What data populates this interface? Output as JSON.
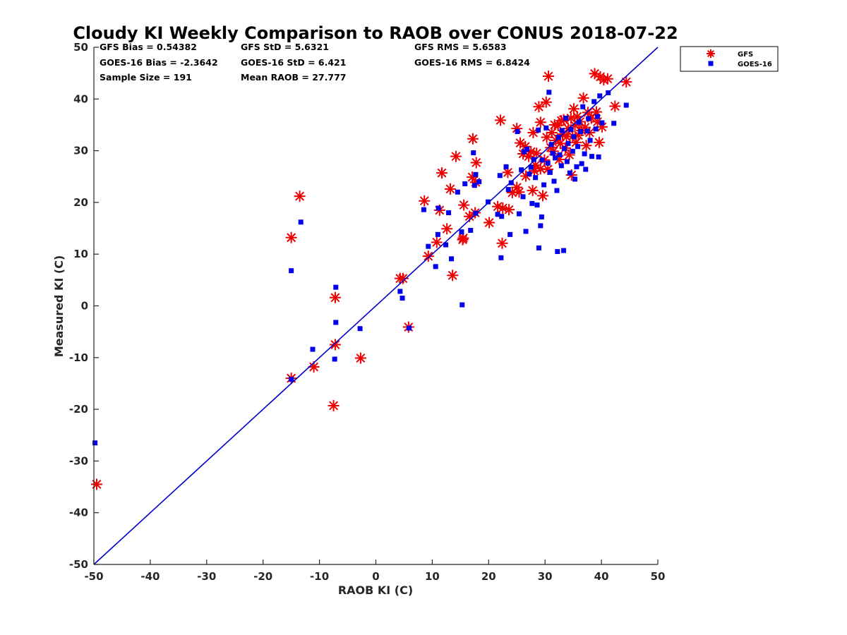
{
  "chart_data": {
    "type": "scatter",
    "title": "Cloudy KI Weekly Comparison to RAOB over CONUS 2018-07-22",
    "xlabel": "RAOB KI (C)",
    "ylabel": "Measured KI (C)",
    "xlim": [
      -50,
      50
    ],
    "ylim": [
      -50,
      50
    ],
    "xticks": [
      -50,
      -40,
      -30,
      -20,
      -10,
      0,
      10,
      20,
      30,
      40,
      50
    ],
    "yticks": [
      -50,
      -40,
      -30,
      -20,
      -10,
      0,
      10,
      20,
      30,
      40,
      50
    ],
    "grid": false,
    "legend_position": "top-right-outside",
    "reference_line": {
      "from": [
        -50,
        -50
      ],
      "to": [
        50,
        50
      ],
      "color": "#0000cc"
    },
    "stats": [
      [
        "GFS Bias = 0.54382",
        "GFS StD = 5.6321",
        "GFS RMS = 5.6583"
      ],
      [
        "GOES-16 Bias = -2.3642",
        "GOES-16 StD = 6.421",
        "GOES-16 RMS = 6.8424"
      ],
      [
        "Sample Size = 191",
        "Mean RAOB = 27.777",
        ""
      ]
    ],
    "series": [
      {
        "name": "GFS",
        "marker": "asterisk",
        "color": "#ee0000",
        "points": [
          [
            -49.5,
            -34.5
          ],
          [
            -15,
            13.2
          ],
          [
            -13.5,
            21.2
          ],
          [
            -15,
            -14
          ],
          [
            -11,
            -11.8
          ],
          [
            -7.5,
            -19.3
          ],
          [
            -7.2,
            1.6
          ],
          [
            -7.2,
            -7.5
          ],
          [
            -2.7,
            -10.1
          ],
          [
            4.3,
            5.3
          ],
          [
            4.8,
            5.3
          ],
          [
            5.8,
            -4.1
          ],
          [
            8.6,
            20.3
          ],
          [
            9.3,
            9.6
          ],
          [
            10.8,
            12.3
          ],
          [
            11.3,
            18.5
          ],
          [
            11.7,
            25.7
          ],
          [
            12.6,
            14.9
          ],
          [
            13.2,
            22.6
          ],
          [
            13.6,
            5.9
          ],
          [
            14.2,
            28.9
          ],
          [
            15.4,
            12.8
          ],
          [
            15.5,
            13.1
          ],
          [
            15.6,
            19.5
          ],
          [
            16.6,
            17.3
          ],
          [
            17.1,
            24.9
          ],
          [
            17.2,
            32.3
          ],
          [
            17.6,
            18
          ],
          [
            17.8,
            27.7
          ],
          [
            17.7,
            23.9
          ],
          [
            20.1,
            16.1
          ],
          [
            21.6,
            19.2
          ],
          [
            22.1,
            35.9
          ],
          [
            22.4,
            12.1
          ],
          [
            22.5,
            18.9
          ],
          [
            23.4,
            25.8
          ],
          [
            23.6,
            18.6
          ],
          [
            24.2,
            21.9
          ],
          [
            25,
            22.9
          ],
          [
            25,
            34.3
          ],
          [
            25.4,
            22
          ],
          [
            25.6,
            31.5
          ],
          [
            26.1,
            29.4
          ],
          [
            26.5,
            30.8
          ],
          [
            26.6,
            25.1
          ],
          [
            27.1,
            28.9
          ],
          [
            27.5,
            29.8
          ],
          [
            27.8,
            22.3
          ],
          [
            27.9,
            33.5
          ],
          [
            28.1,
            26.1
          ],
          [
            28.3,
            27.2
          ],
          [
            28.5,
            29.5
          ],
          [
            28.9,
            38.5
          ],
          [
            29.2,
            35.5
          ],
          [
            29.2,
            26.5
          ],
          [
            29.6,
            21.3
          ],
          [
            29.9,
            28.2
          ],
          [
            30.2,
            39.4
          ],
          [
            30.3,
            32.6
          ],
          [
            30.6,
            44.4
          ],
          [
            30.5,
            26.4
          ],
          [
            31,
            30.6
          ],
          [
            31.2,
            33.5
          ],
          [
            31.5,
            29.9
          ],
          [
            31.7,
            35
          ],
          [
            31.9,
            32
          ],
          [
            32.3,
            34.9
          ],
          [
            32.5,
            28.3
          ],
          [
            32.7,
            31.4
          ],
          [
            32.9,
            35.8
          ],
          [
            33.1,
            33.2
          ],
          [
            33.3,
            36
          ],
          [
            33.6,
            30.5
          ],
          [
            33.8,
            32.7
          ],
          [
            34.1,
            34.3
          ],
          [
            34.3,
            29.2
          ],
          [
            34.6,
            36.3
          ],
          [
            34.7,
            25.3
          ],
          [
            34.9,
            32.8
          ],
          [
            35.1,
            38.1
          ],
          [
            35.3,
            34.9
          ],
          [
            35.5,
            31.6
          ],
          [
            35.7,
            36.6
          ],
          [
            35.9,
            33
          ],
          [
            36.2,
            35.6
          ],
          [
            36.5,
            33.9
          ],
          [
            36.8,
            40.2
          ],
          [
            37.1,
            34.5
          ],
          [
            37.3,
            31
          ],
          [
            37.6,
            37.4
          ],
          [
            37.9,
            33.5
          ],
          [
            38.2,
            36.3
          ],
          [
            38.8,
            44.9
          ],
          [
            39.1,
            37.5
          ],
          [
            39.3,
            35.6
          ],
          [
            39.6,
            31.6
          ],
          [
            39.8,
            44.3
          ],
          [
            40.1,
            34.6
          ],
          [
            40.4,
            43.7
          ],
          [
            41.1,
            43.9
          ],
          [
            42.4,
            38.6
          ],
          [
            44.4,
            43.3
          ]
        ]
      },
      {
        "name": "GOES-16",
        "marker": "square",
        "color": "#0000ee",
        "points": [
          [
            -49.8,
            -26.5
          ],
          [
            -15,
            6.8
          ],
          [
            -13.3,
            16.2
          ],
          [
            -15,
            -14.2
          ],
          [
            -11.2,
            -8.4
          ],
          [
            -7.3,
            -10.3
          ],
          [
            -7.1,
            3.6
          ],
          [
            -7.1,
            -3.2
          ],
          [
            -2.8,
            -4.4
          ],
          [
            4.3,
            2.8
          ],
          [
            4.7,
            1.5
          ],
          [
            5.9,
            -4.3
          ],
          [
            8.5,
            18.6
          ],
          [
            9.3,
            11.5
          ],
          [
            10.6,
            7.6
          ],
          [
            11,
            13.8
          ],
          [
            11.1,
            18.9
          ],
          [
            12.4,
            11.8
          ],
          [
            12.9,
            18
          ],
          [
            13.4,
            9.1
          ],
          [
            14.5,
            22
          ],
          [
            15.2,
            14.3
          ],
          [
            15.3,
            0.2
          ],
          [
            15.8,
            23.6
          ],
          [
            16.8,
            14.6
          ],
          [
            17.3,
            29.6
          ],
          [
            17.5,
            23.3
          ],
          [
            17.7,
            25.4
          ],
          [
            17.7,
            17.9
          ],
          [
            18.3,
            24
          ],
          [
            19.9,
            20.1
          ],
          [
            21.6,
            17.7
          ],
          [
            22,
            25.2
          ],
          [
            22.2,
            9.3
          ],
          [
            22.3,
            17.3
          ],
          [
            23.1,
            26.9
          ],
          [
            23.5,
            22.5
          ],
          [
            23.8,
            13.8
          ],
          [
            24,
            23.8
          ],
          [
            25.1,
            33.7
          ],
          [
            25.4,
            17.8
          ],
          [
            25.8,
            26.3
          ],
          [
            26.1,
            21.1
          ],
          [
            26.3,
            29.8
          ],
          [
            26.6,
            14.4
          ],
          [
            26.8,
            30.3
          ],
          [
            27.2,
            25.5
          ],
          [
            27.5,
            26.8
          ],
          [
            27.7,
            19.8
          ],
          [
            28,
            28.3
          ],
          [
            28.3,
            24.8
          ],
          [
            28.6,
            19.5
          ],
          [
            28.8,
            34
          ],
          [
            28.9,
            11.2
          ],
          [
            29.2,
            15.5
          ],
          [
            29.4,
            17.2
          ],
          [
            29.5,
            28.2
          ],
          [
            29.8,
            23.4
          ],
          [
            30.2,
            34.4
          ],
          [
            30.5,
            27.6
          ],
          [
            30.7,
            41.3
          ],
          [
            30.9,
            25.8
          ],
          [
            31.1,
            31.2
          ],
          [
            31.4,
            29.5
          ],
          [
            31.6,
            24.1
          ],
          [
            31.8,
            28.6
          ],
          [
            32.1,
            22.3
          ],
          [
            32.2,
            10.5
          ],
          [
            32.4,
            32.6
          ],
          [
            32.6,
            29.2
          ],
          [
            32.9,
            27.1
          ],
          [
            33,
            33.9
          ],
          [
            33.3,
            10.7
          ],
          [
            33.4,
            30.4
          ],
          [
            33.7,
            36.3
          ],
          [
            33.9,
            27.9
          ],
          [
            34.1,
            31.4
          ],
          [
            34.4,
            25.7
          ],
          [
            34.6,
            34.1
          ],
          [
            34.9,
            29.9
          ],
          [
            35.1,
            32.7
          ],
          [
            35.3,
            24.5
          ],
          [
            35.6,
            26.9
          ],
          [
            35.8,
            30.8
          ],
          [
            36,
            35.5
          ],
          [
            36.3,
            33.7
          ],
          [
            36.5,
            27.5
          ],
          [
            36.7,
            38.5
          ],
          [
            37,
            29.4
          ],
          [
            37.2,
            26.4
          ],
          [
            37.5,
            33.8
          ],
          [
            37.7,
            36.2
          ],
          [
            38,
            32
          ],
          [
            38.3,
            28.9
          ],
          [
            38.7,
            39.5
          ],
          [
            39,
            34.2
          ],
          [
            39.3,
            36.6
          ],
          [
            39.5,
            28.8
          ],
          [
            39.7,
            40.6
          ],
          [
            40.1,
            35.4
          ],
          [
            41.2,
            41.2
          ],
          [
            42.2,
            35.3
          ],
          [
            44.4,
            38.8
          ]
        ]
      }
    ]
  }
}
